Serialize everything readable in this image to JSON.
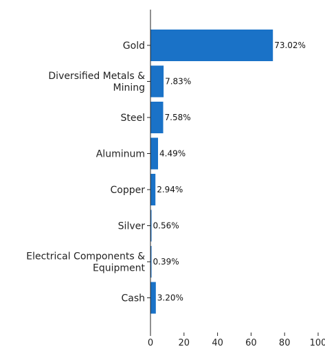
{
  "chart_data": {
    "type": "bar",
    "orientation": "horizontal",
    "categories": [
      "Gold",
      "Diversified Metals & Mining",
      "Steel",
      "Aluminum",
      "Copper",
      "Silver",
      "Electrical Components & Equipment",
      "Cash"
    ],
    "category_lines": [
      [
        "Gold"
      ],
      [
        "Diversified Metals &",
        "Mining"
      ],
      [
        "Steel"
      ],
      [
        "Aluminum"
      ],
      [
        "Copper"
      ],
      [
        "Silver"
      ],
      [
        "Electrical Components &",
        "Equipment"
      ],
      [
        "Cash"
      ]
    ],
    "values": [
      73.02,
      7.83,
      7.58,
      4.49,
      2.94,
      0.56,
      0.39,
      3.2
    ],
    "value_labels": [
      "73.02%",
      "7.83%",
      "7.58%",
      "4.49%",
      "2.94%",
      "0.56%",
      "0.39%",
      "3.20%"
    ],
    "xlim": [
      0,
      100
    ],
    "x_ticks": [
      "0",
      "20",
      "40",
      "60",
      "80",
      "100"
    ],
    "bar_color": "#1a72c7",
    "grid": false,
    "legend": false,
    "title": "",
    "xlabel": "",
    "ylabel": ""
  }
}
